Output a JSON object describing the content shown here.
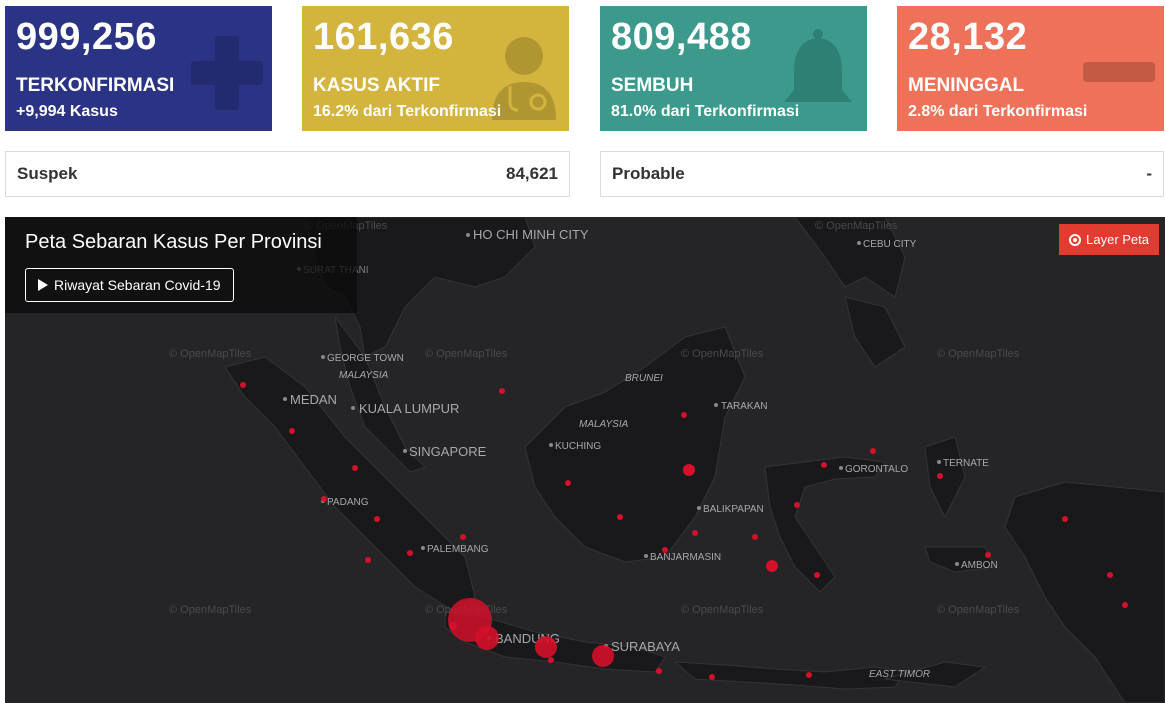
{
  "stats": [
    {
      "value": "999,256",
      "label": "TERKONFIRMASI",
      "sub": "+9,994 Kasus",
      "color": "#2b3384",
      "icon": "plus-icon"
    },
    {
      "value": "161,636",
      "label": "KASUS AKTIF",
      "sub": "16.2% dari Terkonfirmasi",
      "color": "#d3b43f",
      "icon": "doctor-icon"
    },
    {
      "value": "809,488",
      "label": "SEMBUH",
      "sub": "81.0% dari Terkonfirmasi",
      "color": "#3b9a8c",
      "icon": "bell-icon"
    },
    {
      "value": "28,132",
      "label": "MENINGGAL",
      "sub": "2.8% dari Terkonfirmasi",
      "color": "#ee7259",
      "icon": "minus-icon"
    }
  ],
  "extra": {
    "suspek_label": "Suspek",
    "suspek_value": "84,621",
    "probable_label": "Probable",
    "probable_value": "-"
  },
  "map": {
    "title": "Peta Sebaran Kasus Per Provinsi",
    "history_button": "Riwayat Sebaran Covid-19",
    "layer_button": "Layer Peta",
    "attribution": "© OpenMapTiles",
    "cities": {
      "ho_chi_minh": "HO CHI MINH CITY",
      "cebu": "CEBU CITY",
      "surat_thani": "SURAT THANI",
      "george_town": "GEORGE TOWN",
      "malaysia_west": "MALAYSIA",
      "medan": "MEDAN",
      "kuala_lumpur": "KUALA LUMPUR",
      "brunei": "BRUNEI",
      "tarakan": "TARAKAN",
      "malaysia_east": "MALAYSIA",
      "kuching": "KUCHING",
      "singapore": "SINGAPORE",
      "gorontalo": "GORONTALO",
      "ternate": "TERNATE",
      "padang": "PADANG",
      "balikpapan": "BALIKPAPAN",
      "palembang": "PALEMBANG",
      "banjarmasin": "BANJARMASIN",
      "ambon": "AMBON",
      "bandung": "BANDUNG",
      "surabaya": "SURABAYA",
      "east_timor": "EAST TIMOR"
    }
  }
}
